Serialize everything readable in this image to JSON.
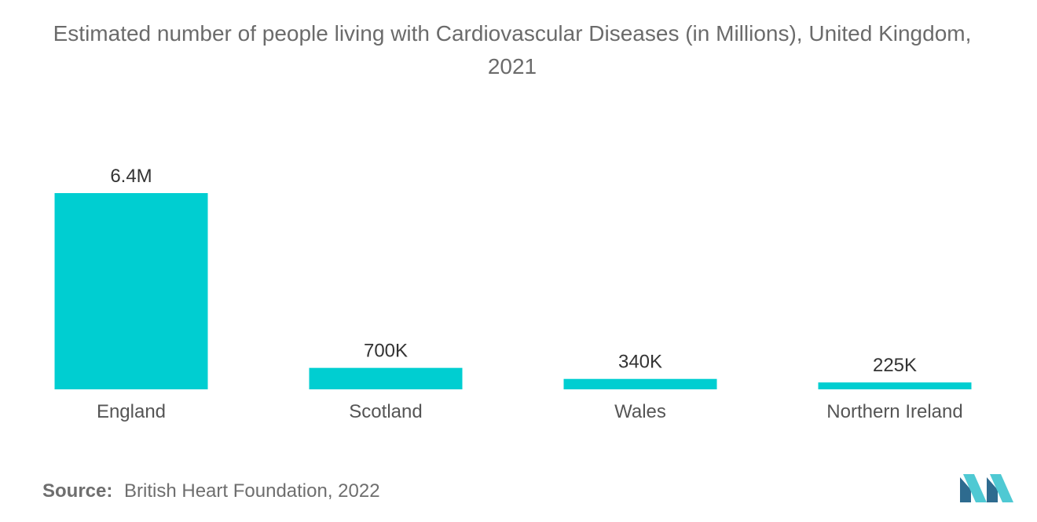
{
  "chart_data": {
    "type": "bar",
    "title": "Estimated number of people living with Cardiovascular Diseases (in Millions), United Kingdom, 2021",
    "categories": [
      "England",
      "Scotland",
      "Wales",
      "Northern Ireland"
    ],
    "values": [
      6.4,
      0.7,
      0.34,
      0.225
    ],
    "data_labels": [
      "6.4M",
      "700K",
      "340K",
      "225K"
    ],
    "ylim": [
      0,
      6.4
    ],
    "grid": false,
    "legend": "none",
    "bar_color": "#00ced1"
  },
  "source": {
    "label": "Source:",
    "text": "British Heart Foundation, 2022"
  },
  "colors": {
    "title": "#6b6b6b",
    "axis_text": "#555555",
    "logo_dark": "#2e6b8f",
    "logo_light": "#4fc9d3"
  }
}
